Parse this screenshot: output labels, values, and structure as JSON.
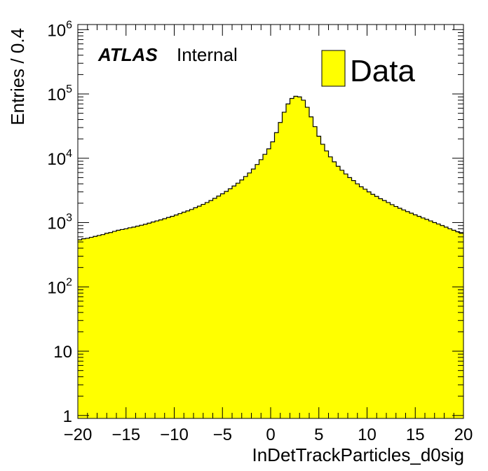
{
  "chart_data": {
    "type": "histogram",
    "title": "",
    "xlabel": "InDetTrackParticles_d0sig",
    "ylabel": "Entries / 0.4",
    "xlim": [
      -20,
      20
    ],
    "ylim": [
      0.9,
      1200000
    ],
    "yscale": "log",
    "bin_width": 0.4,
    "fill_color": "#ffff00",
    "line_color": "#000000",
    "x_ticks": [
      -20,
      -15,
      -10,
      -5,
      0,
      5,
      10,
      15,
      20
    ],
    "x_tick_labels": [
      "−20",
      "−15",
      "−10",
      "−5",
      "0",
      "5",
      "10",
      "15",
      "20"
    ],
    "y_ticks": [
      {
        "value": 1,
        "base": "1",
        "exp": ""
      },
      {
        "value": 10,
        "base": "10",
        "exp": ""
      },
      {
        "value": 100,
        "base": "10",
        "exp": "2"
      },
      {
        "value": 1000,
        "base": "10",
        "exp": "3"
      },
      {
        "value": 10000,
        "base": "10",
        "exp": "4"
      },
      {
        "value": 100000,
        "base": "10",
        "exp": "5"
      },
      {
        "value": 1000000,
        "base": "10",
        "exp": "6"
      }
    ],
    "atlas_label": "ATLAS",
    "atlas_status": "Internal",
    "legend": [
      {
        "name": "Data",
        "color": "#ffff00"
      }
    ],
    "legend_position": "top-right",
    "series": [
      {
        "name": "Data",
        "x_edges_start": -20,
        "values": [
          540,
          560,
          570,
          590,
          610,
          630,
          650,
          680,
          700,
          730,
          760,
          780,
          800,
          830,
          850,
          880,
          910,
          940,
          980,
          1020,
          1060,
          1100,
          1150,
          1200,
          1250,
          1310,
          1380,
          1450,
          1520,
          1600,
          1700,
          1800,
          1920,
          2050,
          2200,
          2380,
          2580,
          2800,
          3050,
          3350,
          3700,
          4100,
          4600,
          5200,
          5900,
          6800,
          8000,
          9500,
          11500,
          14000,
          18000,
          25000,
          36000,
          52000,
          70000,
          85000,
          92000,
          90000,
          80000,
          62000,
          44000,
          31000,
          22000,
          16500,
          13000,
          10500,
          8800,
          7500,
          6500,
          5700,
          5000,
          4500,
          4000,
          3600,
          3300,
          3000,
          2750,
          2550,
          2350,
          2200,
          2050,
          1900,
          1780,
          1670,
          1570,
          1480,
          1400,
          1320,
          1250,
          1180,
          1120,
          1060,
          1000,
          950,
          900,
          850,
          800,
          760,
          720,
          680
        ]
      }
    ]
  }
}
